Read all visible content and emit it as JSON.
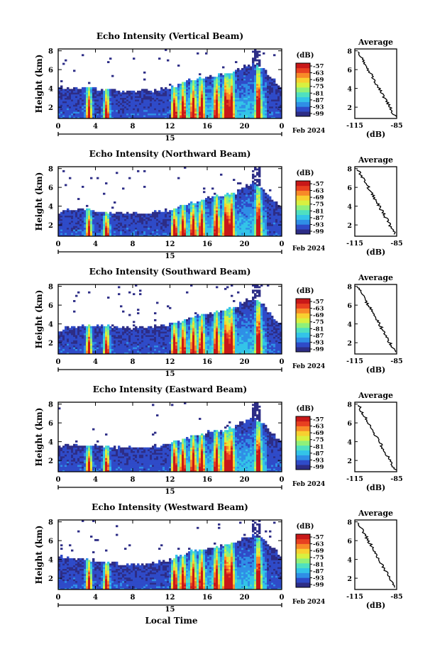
{
  "figure": {
    "date_label": "Feb 2024",
    "day_label": "15",
    "xlabel_bottom": "Local Time"
  },
  "colorbar": {
    "unit": "(dB)",
    "ticks": [
      "-57",
      "-63",
      "-69",
      "-75",
      "-81",
      "-87",
      "-93",
      "-99"
    ],
    "colors": [
      "#2d2d86",
      "#2f4bc8",
      "#2f8fe6",
      "#33c4e8",
      "#4fe0c0",
      "#8ff07a",
      "#d8f040",
      "#f8d030",
      "#f88a28",
      "#e84020",
      "#c81818"
    ]
  },
  "chart_data": [
    {
      "type": "heatmap",
      "title": "Echo Intensity (Vertical Beam)",
      "xlabel": "",
      "ylabel": "Height (km)",
      "x_ticks": [
        "0",
        "4",
        "8",
        "12",
        "16",
        "20",
        "0"
      ],
      "y_ticks": [
        "2",
        "4",
        "6",
        "8"
      ],
      "xlim": [
        0,
        24
      ],
      "ylim": [
        0.8,
        8.2
      ],
      "colorbar_range": [
        -99,
        -57
      ],
      "echo_top_km": [
        4.1,
        4.1,
        4.0,
        4.1,
        4.0,
        3.9,
        3.8,
        3.7,
        3.7,
        3.7,
        3.8,
        3.9,
        4.0,
        4.5,
        4.9,
        5.1,
        5.2,
        5.4,
        5.6,
        5.8,
        6.3,
        6.6,
        6.2,
        5.1,
        4.2
      ],
      "convective_cores_hr": [
        3.3,
        5.2,
        12.5,
        13.4,
        14.5,
        15.4,
        17.0,
        18.0,
        18.6,
        21.5
      ],
      "average": {
        "title": "Average",
        "xlabel": "(dB)",
        "x_ticks": [
          "-115",
          "-85"
        ],
        "y_ticks": [
          "2",
          "4",
          "6",
          "8"
        ],
        "xlim": [
          -115,
          -85
        ]
      }
    },
    {
      "type": "heatmap",
      "title": "Echo Intensity (Northward Beam)",
      "xlabel": "",
      "ylabel": "Height (km)",
      "x_ticks": [
        "0",
        "4",
        "8",
        "12",
        "16",
        "20",
        "0"
      ],
      "y_ticks": [
        "2",
        "4",
        "6",
        "8"
      ],
      "xlim": [
        0,
        24
      ],
      "ylim": [
        0.8,
        8.2
      ],
      "colorbar_range": [
        -99,
        -57
      ],
      "echo_top_km": [
        3.4,
        3.6,
        3.6,
        3.7,
        3.5,
        3.4,
        3.3,
        3.2,
        3.3,
        3.3,
        3.3,
        3.4,
        3.6,
        3.9,
        4.3,
        4.6,
        4.9,
        5.0,
        5.2,
        5.4,
        6.1,
        6.4,
        5.9,
        4.8,
        3.9
      ],
      "convective_cores_hr": [
        3.3,
        5.2,
        12.5,
        13.4,
        14.5,
        15.4,
        17.0,
        18.0,
        18.6,
        21.5
      ],
      "average": {
        "title": "Average",
        "xlabel": "(dB)",
        "x_ticks": [
          "-115",
          "-85"
        ],
        "y_ticks": [
          "2",
          "4",
          "6",
          "8"
        ],
        "xlim": [
          -115,
          -85
        ]
      }
    },
    {
      "type": "heatmap",
      "title": "Echo Intensity (Southward Beam)",
      "xlabel": "",
      "ylabel": "Height (km)",
      "x_ticks": [
        "0",
        "4",
        "8",
        "12",
        "16",
        "20",
        "0"
      ],
      "y_ticks": [
        "2",
        "4",
        "6",
        "8"
      ],
      "xlim": [
        0,
        24
      ],
      "ylim": [
        0.8,
        8.2
      ],
      "colorbar_range": [
        -99,
        -57
      ],
      "echo_top_km": [
        3.3,
        3.6,
        3.7,
        3.8,
        3.8,
        3.8,
        3.7,
        3.6,
        3.6,
        3.6,
        3.7,
        3.8,
        3.9,
        4.2,
        4.7,
        4.9,
        5.1,
        5.3,
        5.5,
        5.8,
        6.4,
        6.7,
        6.1,
        4.9,
        4.0
      ],
      "convective_cores_hr": [
        3.3,
        5.2,
        12.5,
        13.4,
        14.5,
        15.4,
        17.0,
        18.0,
        18.6,
        21.5
      ],
      "average": {
        "title": "Average",
        "xlabel": "(dB)",
        "x_ticks": [
          "-115",
          "-85"
        ],
        "y_ticks": [
          "2",
          "4",
          "6",
          "8"
        ],
        "xlim": [
          -115,
          -85
        ]
      }
    },
    {
      "type": "heatmap",
      "title": "Echo Intensity (Eastward Beam)",
      "xlabel": "",
      "ylabel": "Height (km)",
      "x_ticks": [
        "0",
        "4",
        "8",
        "12",
        "16",
        "20",
        "0"
      ],
      "y_ticks": [
        "2",
        "4",
        "6",
        "8"
      ],
      "xlim": [
        0,
        24
      ],
      "ylim": [
        0.8,
        8.2
      ],
      "colorbar_range": [
        -99,
        -57
      ],
      "echo_top_km": [
        3.5,
        3.7,
        3.6,
        3.7,
        3.6,
        3.5,
        3.4,
        3.4,
        3.4,
        3.4,
        3.5,
        3.6,
        3.8,
        4.1,
        4.5,
        4.8,
        5.0,
        5.1,
        5.3,
        5.6,
        6.2,
        6.5,
        6.0,
        4.9,
        4.0
      ],
      "convective_cores_hr": [
        3.3,
        5.2,
        12.5,
        13.4,
        14.5,
        15.4,
        17.0,
        18.0,
        18.6,
        21.5
      ],
      "average": {
        "title": "Average",
        "xlabel": "(dB)",
        "x_ticks": [
          "-115",
          "-85"
        ],
        "y_ticks": [
          "2",
          "4",
          "6",
          "8"
        ],
        "xlim": [
          -115,
          -85
        ]
      }
    },
    {
      "type": "heatmap",
      "title": "Echo Intensity (Westward Beam)",
      "xlabel": "",
      "ylabel": "Height (km)",
      "x_ticks": [
        "0",
        "4",
        "8",
        "12",
        "16",
        "20",
        "0"
      ],
      "y_ticks": [
        "2",
        "4",
        "6",
        "8"
      ],
      "xlim": [
        0,
        24
      ],
      "ylim": [
        0.8,
        8.2
      ],
      "colorbar_range": [
        -99,
        -57
      ],
      "echo_top_km": [
        4.3,
        4.2,
        4.0,
        4.1,
        3.9,
        3.7,
        3.6,
        3.5,
        3.5,
        3.5,
        3.6,
        3.8,
        4.0,
        4.4,
        4.8,
        5.0,
        5.2,
        5.3,
        5.5,
        5.7,
        6.3,
        6.6,
        6.2,
        5.2,
        4.3
      ],
      "convective_cores_hr": [
        3.3,
        5.2,
        12.5,
        13.4,
        14.5,
        15.4,
        17.0,
        18.0,
        18.6,
        21.5
      ],
      "average": {
        "title": "Average",
        "xlabel": "(dB)",
        "x_ticks": [
          "-115",
          "-85"
        ],
        "y_ticks": [
          "2",
          "4",
          "6",
          "8"
        ],
        "xlim": [
          -115,
          -85
        ]
      }
    }
  ]
}
